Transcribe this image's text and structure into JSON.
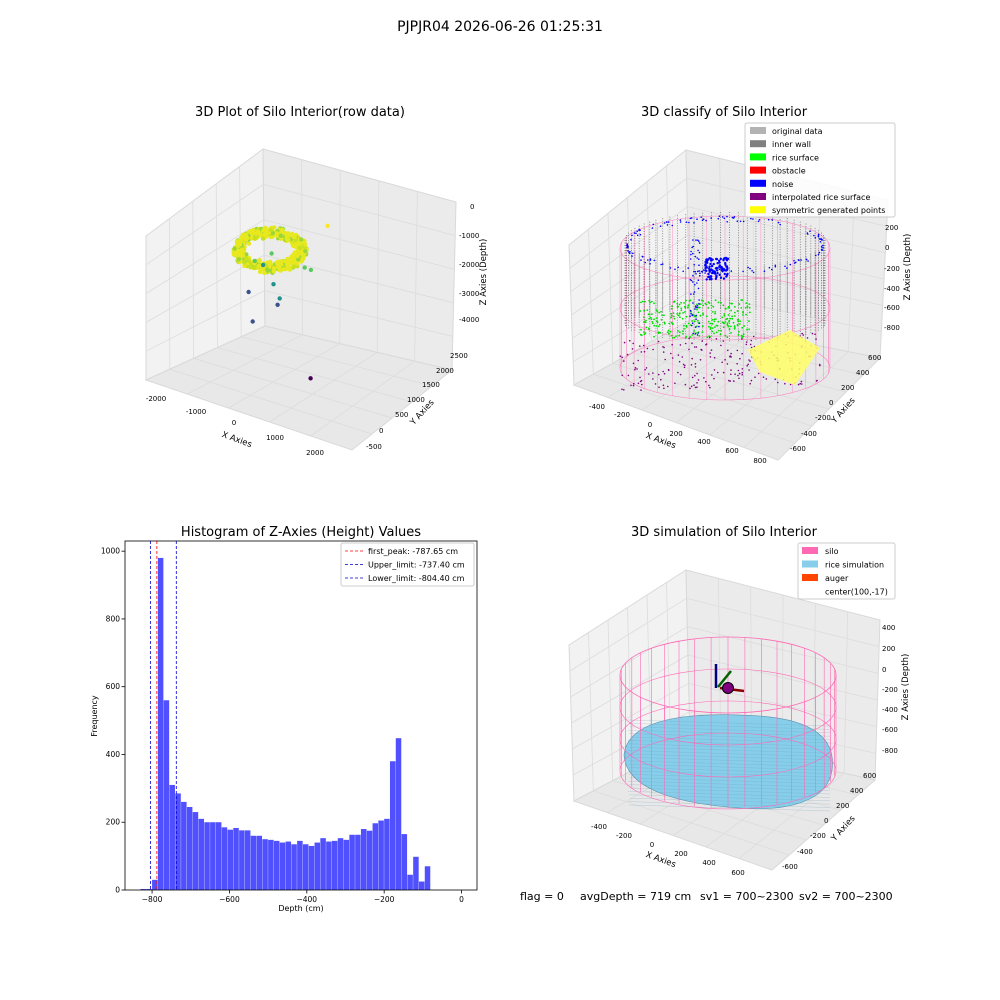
{
  "suptitle": "PJPJR04 2026-06-26 01:25:31",
  "footer": {
    "flag": "flag = 0",
    "avg": "avgDepth = 719 cm",
    "sv1": "sv1 = 700~2300",
    "sv2": "sv2 = 700~2300"
  },
  "colors": {
    "hist_bar": "#5050ff",
    "peak_line": "#ff0000",
    "limit_line": "#0000cc",
    "silo": "#ff69b4",
    "rice_sim": "#87ceeb",
    "auger": "#ff4500",
    "pane_fill": "#f2f2f2",
    "grid": "#dcdcdc"
  },
  "chart_data": [
    {
      "type": "scatter",
      "title": "3D Plot of Silo Interior(row data)",
      "xlabel": "X Axies",
      "ylabel": "Y Axies",
      "zlabel": "Z Axies (Depth)",
      "x_ticks": [
        "-2000",
        "-1000",
        "0",
        "1000",
        "2000"
      ],
      "y_ticks": [
        "-500",
        "0",
        "500",
        "1000",
        "1500",
        "2000",
        "2500"
      ],
      "z_ticks": [
        "0",
        "-1000",
        "-2000",
        "-3000",
        "-4000"
      ],
      "colormap": "viridis",
      "outliers": [
        {
          "x": 1750,
          "y": 1000,
          "z": -1800
        },
        {
          "x": 1700,
          "y": 300,
          "z": -2500
        },
        {
          "x": 1400,
          "y": 600,
          "z": -2600
        },
        {
          "x": 500,
          "y": 800,
          "z": -2600
        },
        {
          "x": 400,
          "y": 600,
          "z": -2800
        },
        {
          "x": 300,
          "y": 400,
          "z": -2700
        },
        {
          "x": 800,
          "y": 300,
          "z": -3000
        },
        {
          "x": 1000,
          "y": 200,
          "z": -3200
        },
        {
          "x": 1000,
          "y": 100,
          "z": -3300
        },
        {
          "x": 200,
          "y": 300,
          "z": -3300
        },
        {
          "x": 500,
          "y": -100,
          "z": -3700
        },
        {
          "x": 2100,
          "y": -500,
          "z": -4300
        }
      ]
    },
    {
      "type": "scatter",
      "title": "3D classify of Silo Interior",
      "xlabel": "X Axies",
      "ylabel": "Y Axies",
      "zlabel": "Z Axies (Depth)",
      "x_ticks": [
        "-400",
        "-200",
        "0",
        "200",
        "400",
        "600",
        "800"
      ],
      "y_ticks": [
        "-600",
        "-400",
        "-200",
        "0",
        "200",
        "400",
        "600"
      ],
      "z_ticks": [
        "200",
        "0",
        "-200",
        "-400",
        "-600",
        "-800"
      ],
      "legend_position": "top-right",
      "legend": [
        {
          "label": "original data",
          "color": "#b3b3b3"
        },
        {
          "label": "inner wall",
          "color": "#808080"
        },
        {
          "label": "rice surface",
          "color": "#00ff00"
        },
        {
          "label": "obstacle",
          "color": "#ff0000"
        },
        {
          "label": "noise",
          "color": "#0000ff"
        },
        {
          "label": "interpolated rice surface",
          "color": "#800080"
        },
        {
          "label": "symmetric generated points",
          "color": "#ffff00"
        }
      ]
    },
    {
      "type": "bar",
      "title": "Histogram of Z-Axies (Height) Values",
      "xlabel": "Depth (cm)",
      "ylabel": "Frequency",
      "xlim": [
        -870,
        40
      ],
      "ylim": [
        0,
        1030
      ],
      "x_ticks": [
        -800,
        -600,
        -400,
        -200,
        0
      ],
      "y_ticks": [
        0,
        200,
        400,
        600,
        800,
        1000
      ],
      "bin_start": -830,
      "bin_width": 15,
      "values": [
        3,
        3,
        30,
        980,
        560,
        310,
        285,
        260,
        245,
        230,
        210,
        200,
        200,
        200,
        185,
        178,
        183,
        176,
        176,
        160,
        160,
        150,
        148,
        145,
        140,
        143,
        135,
        145,
        135,
        130,
        140,
        153,
        143,
        145,
        153,
        148,
        163,
        163,
        180,
        175,
        197,
        205,
        210,
        380,
        448,
        165,
        45,
        98,
        25,
        70
      ],
      "lines": [
        {
          "label": "first_peak: -787.65 cm",
          "value": -787.65,
          "style": "peak"
        },
        {
          "label": "Upper_limit: -737.40 cm",
          "value": -737.4,
          "style": "limit"
        },
        {
          "label": "Lower_limit: -804.40 cm",
          "value": -804.4,
          "style": "limit"
        }
      ],
      "legend_position": "top-right"
    },
    {
      "type": "scatter",
      "title": "3D simulation of Silo Interior",
      "xlabel": "X Axies",
      "ylabel": "Y Axies",
      "zlabel": "Z Axies (Depth)",
      "x_ticks": [
        "-400",
        "-200",
        "0",
        "200",
        "400",
        "600"
      ],
      "y_ticks": [
        "-600",
        "-400",
        "-200",
        "0",
        "200",
        "400",
        "600"
      ],
      "z_ticks": [
        "400",
        "200",
        "0",
        "-200",
        "-400",
        "-600",
        "-800"
      ],
      "legend_position": "top-right",
      "legend": [
        {
          "label": "silo",
          "color": "#ff69b4"
        },
        {
          "label": "rice simulation",
          "color": "#87ceeb"
        },
        {
          "label": "auger",
          "color": "#ff4500"
        },
        {
          "label": "center(100,-17)",
          "color": ""
        }
      ]
    }
  ]
}
